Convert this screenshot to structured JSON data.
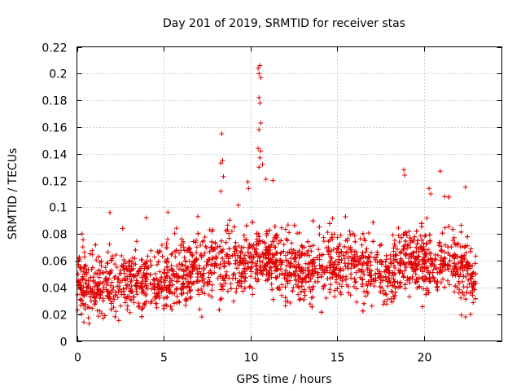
{
  "chart_data": {
    "type": "scatter",
    "title": "Day 201 of 2019, SRMTID for receiver stas",
    "xlabel": "GPS time / hours",
    "ylabel": "SRMTID / TECUs",
    "xlim": [
      0,
      24.5
    ],
    "ylim": [
      0,
      0.22
    ],
    "x_ticks": [
      0,
      5,
      10,
      15,
      20
    ],
    "x_tick_labels": [
      "0",
      "5",
      "10",
      "15",
      "20"
    ],
    "y_ticks": [
      0,
      0.02,
      0.04,
      0.06,
      0.08,
      0.1,
      0.12,
      0.14,
      0.16,
      0.18,
      0.2,
      0.22
    ],
    "y_tick_labels": [
      "0",
      "0.02",
      "0.04",
      "0.06",
      "0.08",
      "0.1",
      "0.12",
      "0.14",
      "0.16",
      "0.18",
      "0.2",
      "0.22"
    ],
    "grid": true,
    "marker": "+",
    "series_color": "#e00000",
    "series": [
      {
        "name": "SRMTID",
        "profile": [
          {
            "x": 0.0,
            "y": 0.048
          },
          {
            "x": 1.0,
            "y": 0.04
          },
          {
            "x": 2.0,
            "y": 0.042
          },
          {
            "x": 3.0,
            "y": 0.044
          },
          {
            "x": 4.0,
            "y": 0.046
          },
          {
            "x": 5.0,
            "y": 0.047
          },
          {
            "x": 6.0,
            "y": 0.049
          },
          {
            "x": 7.0,
            "y": 0.053
          },
          {
            "x": 8.0,
            "y": 0.058
          },
          {
            "x": 9.0,
            "y": 0.057
          },
          {
            "x": 10.0,
            "y": 0.06
          },
          {
            "x": 11.0,
            "y": 0.062
          },
          {
            "x": 12.0,
            "y": 0.054
          },
          {
            "x": 13.0,
            "y": 0.055
          },
          {
            "x": 14.0,
            "y": 0.058
          },
          {
            "x": 15.0,
            "y": 0.059
          },
          {
            "x": 16.0,
            "y": 0.056
          },
          {
            "x": 17.0,
            "y": 0.052
          },
          {
            "x": 18.0,
            "y": 0.051
          },
          {
            "x": 19.0,
            "y": 0.06
          },
          {
            "x": 20.0,
            "y": 0.057
          },
          {
            "x": 21.0,
            "y": 0.06
          },
          {
            "x": 22.0,
            "y": 0.057
          },
          {
            "x": 23.0,
            "y": 0.044
          }
        ],
        "spread": 0.012,
        "x_range": [
          0,
          23.0
        ],
        "n_points": 2600,
        "outliers": [
          {
            "x": 10.55,
            "y": 0.206
          },
          {
            "x": 10.45,
            "y": 0.204
          },
          {
            "x": 10.5,
            "y": 0.2
          },
          {
            "x": 10.6,
            "y": 0.197
          },
          {
            "x": 10.5,
            "y": 0.182
          },
          {
            "x": 10.55,
            "y": 0.178
          },
          {
            "x": 10.6,
            "y": 0.163
          },
          {
            "x": 10.5,
            "y": 0.158
          },
          {
            "x": 10.45,
            "y": 0.144
          },
          {
            "x": 10.6,
            "y": 0.142
          },
          {
            "x": 10.55,
            "y": 0.137
          },
          {
            "x": 10.5,
            "y": 0.13
          },
          {
            "x": 10.7,
            "y": 0.132
          },
          {
            "x": 10.9,
            "y": 0.121
          },
          {
            "x": 11.3,
            "y": 0.12
          },
          {
            "x": 8.35,
            "y": 0.155
          },
          {
            "x": 8.4,
            "y": 0.135
          },
          {
            "x": 8.3,
            "y": 0.133
          },
          {
            "x": 8.45,
            "y": 0.123
          },
          {
            "x": 8.3,
            "y": 0.112
          },
          {
            "x": 9.85,
            "y": 0.119
          },
          {
            "x": 9.9,
            "y": 0.114
          },
          {
            "x": 18.85,
            "y": 0.128
          },
          {
            "x": 18.9,
            "y": 0.124
          },
          {
            "x": 20.95,
            "y": 0.127
          },
          {
            "x": 22.4,
            "y": 0.115
          },
          {
            "x": 20.3,
            "y": 0.114
          },
          {
            "x": 20.4,
            "y": 0.11
          },
          {
            "x": 21.2,
            "y": 0.108
          },
          {
            "x": 1.9,
            "y": 0.096
          },
          {
            "x": 4.0,
            "y": 0.092
          },
          {
            "x": 0.4,
            "y": 0.014
          },
          {
            "x": 0.7,
            "y": 0.013
          },
          {
            "x": 22.4,
            "y": 0.018
          },
          {
            "x": 22.7,
            "y": 0.02
          },
          {
            "x": 7.2,
            "y": 0.018
          }
        ]
      }
    ]
  }
}
